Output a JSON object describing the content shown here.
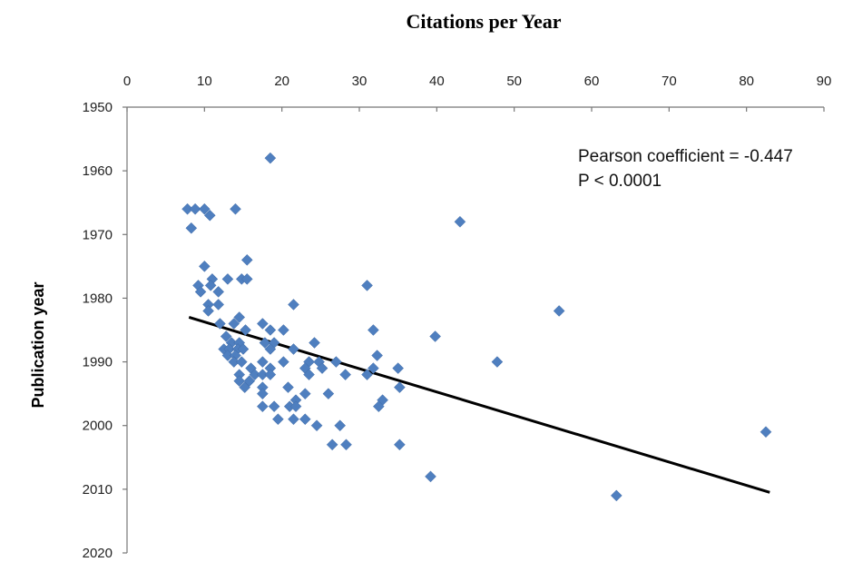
{
  "chart_data": {
    "type": "scatter",
    "title": "Citations per Year",
    "xlabel": "Citations per Year",
    "ylabel": "Publication year",
    "xlim": [
      0,
      90
    ],
    "ylim": [
      1950,
      2020
    ],
    "y_inverted": true,
    "x_axis_position": "top",
    "x_ticks": [
      0,
      10,
      20,
      30,
      40,
      50,
      60,
      70,
      80,
      90
    ],
    "y_ticks": [
      1950,
      1960,
      1970,
      1980,
      1990,
      2000,
      2010,
      2020
    ],
    "grid": false,
    "marker": "diamond",
    "point_color": "#4f7fbf",
    "annotations": [
      "Pearson coefficient = -0.447",
      "P < 0.0001"
    ],
    "trendline": {
      "x": [
        8,
        83
      ],
      "y": [
        1983,
        2010.5
      ]
    },
    "points": [
      {
        "x": 18.5,
        "y": 1958
      },
      {
        "x": 7.8,
        "y": 1966
      },
      {
        "x": 8.8,
        "y": 1966
      },
      {
        "x": 10,
        "y": 1966
      },
      {
        "x": 10.7,
        "y": 1967
      },
      {
        "x": 14,
        "y": 1966
      },
      {
        "x": 8.3,
        "y": 1969
      },
      {
        "x": 43,
        "y": 1968
      },
      {
        "x": 15.5,
        "y": 1974
      },
      {
        "x": 10,
        "y": 1975
      },
      {
        "x": 11,
        "y": 1977
      },
      {
        "x": 13,
        "y": 1977
      },
      {
        "x": 14.8,
        "y": 1977
      },
      {
        "x": 15.5,
        "y": 1977
      },
      {
        "x": 9.2,
        "y": 1978
      },
      {
        "x": 10.8,
        "y": 1978
      },
      {
        "x": 31,
        "y": 1978
      },
      {
        "x": 9.5,
        "y": 1979
      },
      {
        "x": 11.8,
        "y": 1979
      },
      {
        "x": 10.5,
        "y": 1981
      },
      {
        "x": 11.8,
        "y": 1981
      },
      {
        "x": 21.5,
        "y": 1981
      },
      {
        "x": 10.5,
        "y": 1982
      },
      {
        "x": 55.8,
        "y": 1982
      },
      {
        "x": 14.5,
        "y": 1983
      },
      {
        "x": 12,
        "y": 1984
      },
      {
        "x": 13.8,
        "y": 1984
      },
      {
        "x": 17.5,
        "y": 1984
      },
      {
        "x": 15.3,
        "y": 1985
      },
      {
        "x": 18.5,
        "y": 1985
      },
      {
        "x": 20.2,
        "y": 1985
      },
      {
        "x": 31.8,
        "y": 1985
      },
      {
        "x": 12.8,
        "y": 1986
      },
      {
        "x": 39.8,
        "y": 1986
      },
      {
        "x": 13.5,
        "y": 1987
      },
      {
        "x": 14.5,
        "y": 1987
      },
      {
        "x": 17.8,
        "y": 1987
      },
      {
        "x": 19,
        "y": 1987
      },
      {
        "x": 24.2,
        "y": 1987
      },
      {
        "x": 12.5,
        "y": 1988
      },
      {
        "x": 13.2,
        "y": 1988
      },
      {
        "x": 14.3,
        "y": 1988
      },
      {
        "x": 15,
        "y": 1988
      },
      {
        "x": 18.5,
        "y": 1988
      },
      {
        "x": 21.5,
        "y": 1988
      },
      {
        "x": 13,
        "y": 1989
      },
      {
        "x": 14,
        "y": 1989
      },
      {
        "x": 32.3,
        "y": 1989
      },
      {
        "x": 13.8,
        "y": 1990
      },
      {
        "x": 14.8,
        "y": 1990
      },
      {
        "x": 17.5,
        "y": 1990
      },
      {
        "x": 20.2,
        "y": 1990
      },
      {
        "x": 23.5,
        "y": 1990
      },
      {
        "x": 24.8,
        "y": 1990
      },
      {
        "x": 27,
        "y": 1990
      },
      {
        "x": 47.8,
        "y": 1990
      },
      {
        "x": 16,
        "y": 1991
      },
      {
        "x": 18.5,
        "y": 1991
      },
      {
        "x": 23,
        "y": 1991
      },
      {
        "x": 25.2,
        "y": 1991
      },
      {
        "x": 31.8,
        "y": 1991
      },
      {
        "x": 35,
        "y": 1991
      },
      {
        "x": 14.5,
        "y": 1992
      },
      {
        "x": 16.5,
        "y": 1992
      },
      {
        "x": 17.5,
        "y": 1992
      },
      {
        "x": 18.5,
        "y": 1992
      },
      {
        "x": 23.5,
        "y": 1992
      },
      {
        "x": 28.2,
        "y": 1992
      },
      {
        "x": 31,
        "y": 1992
      },
      {
        "x": 14.5,
        "y": 1993
      },
      {
        "x": 15.8,
        "y": 1993
      },
      {
        "x": 15.2,
        "y": 1994
      },
      {
        "x": 17.5,
        "y": 1994
      },
      {
        "x": 20.8,
        "y": 1994
      },
      {
        "x": 35.2,
        "y": 1994
      },
      {
        "x": 17.5,
        "y": 1995
      },
      {
        "x": 23,
        "y": 1995
      },
      {
        "x": 26,
        "y": 1995
      },
      {
        "x": 21.8,
        "y": 1996
      },
      {
        "x": 33,
        "y": 1996
      },
      {
        "x": 17.5,
        "y": 1997
      },
      {
        "x": 19,
        "y": 1997
      },
      {
        "x": 21,
        "y": 1997
      },
      {
        "x": 21.8,
        "y": 1997
      },
      {
        "x": 32.5,
        "y": 1997
      },
      {
        "x": 19.5,
        "y": 1999
      },
      {
        "x": 21.5,
        "y": 1999
      },
      {
        "x": 23,
        "y": 1999
      },
      {
        "x": 24.5,
        "y": 2000
      },
      {
        "x": 27.5,
        "y": 2000
      },
      {
        "x": 82.5,
        "y": 2001
      },
      {
        "x": 26.5,
        "y": 2003
      },
      {
        "x": 28.3,
        "y": 2003
      },
      {
        "x": 35.2,
        "y": 2003
      },
      {
        "x": 39.2,
        "y": 2008
      },
      {
        "x": 63.2,
        "y": 2011
      }
    ]
  }
}
